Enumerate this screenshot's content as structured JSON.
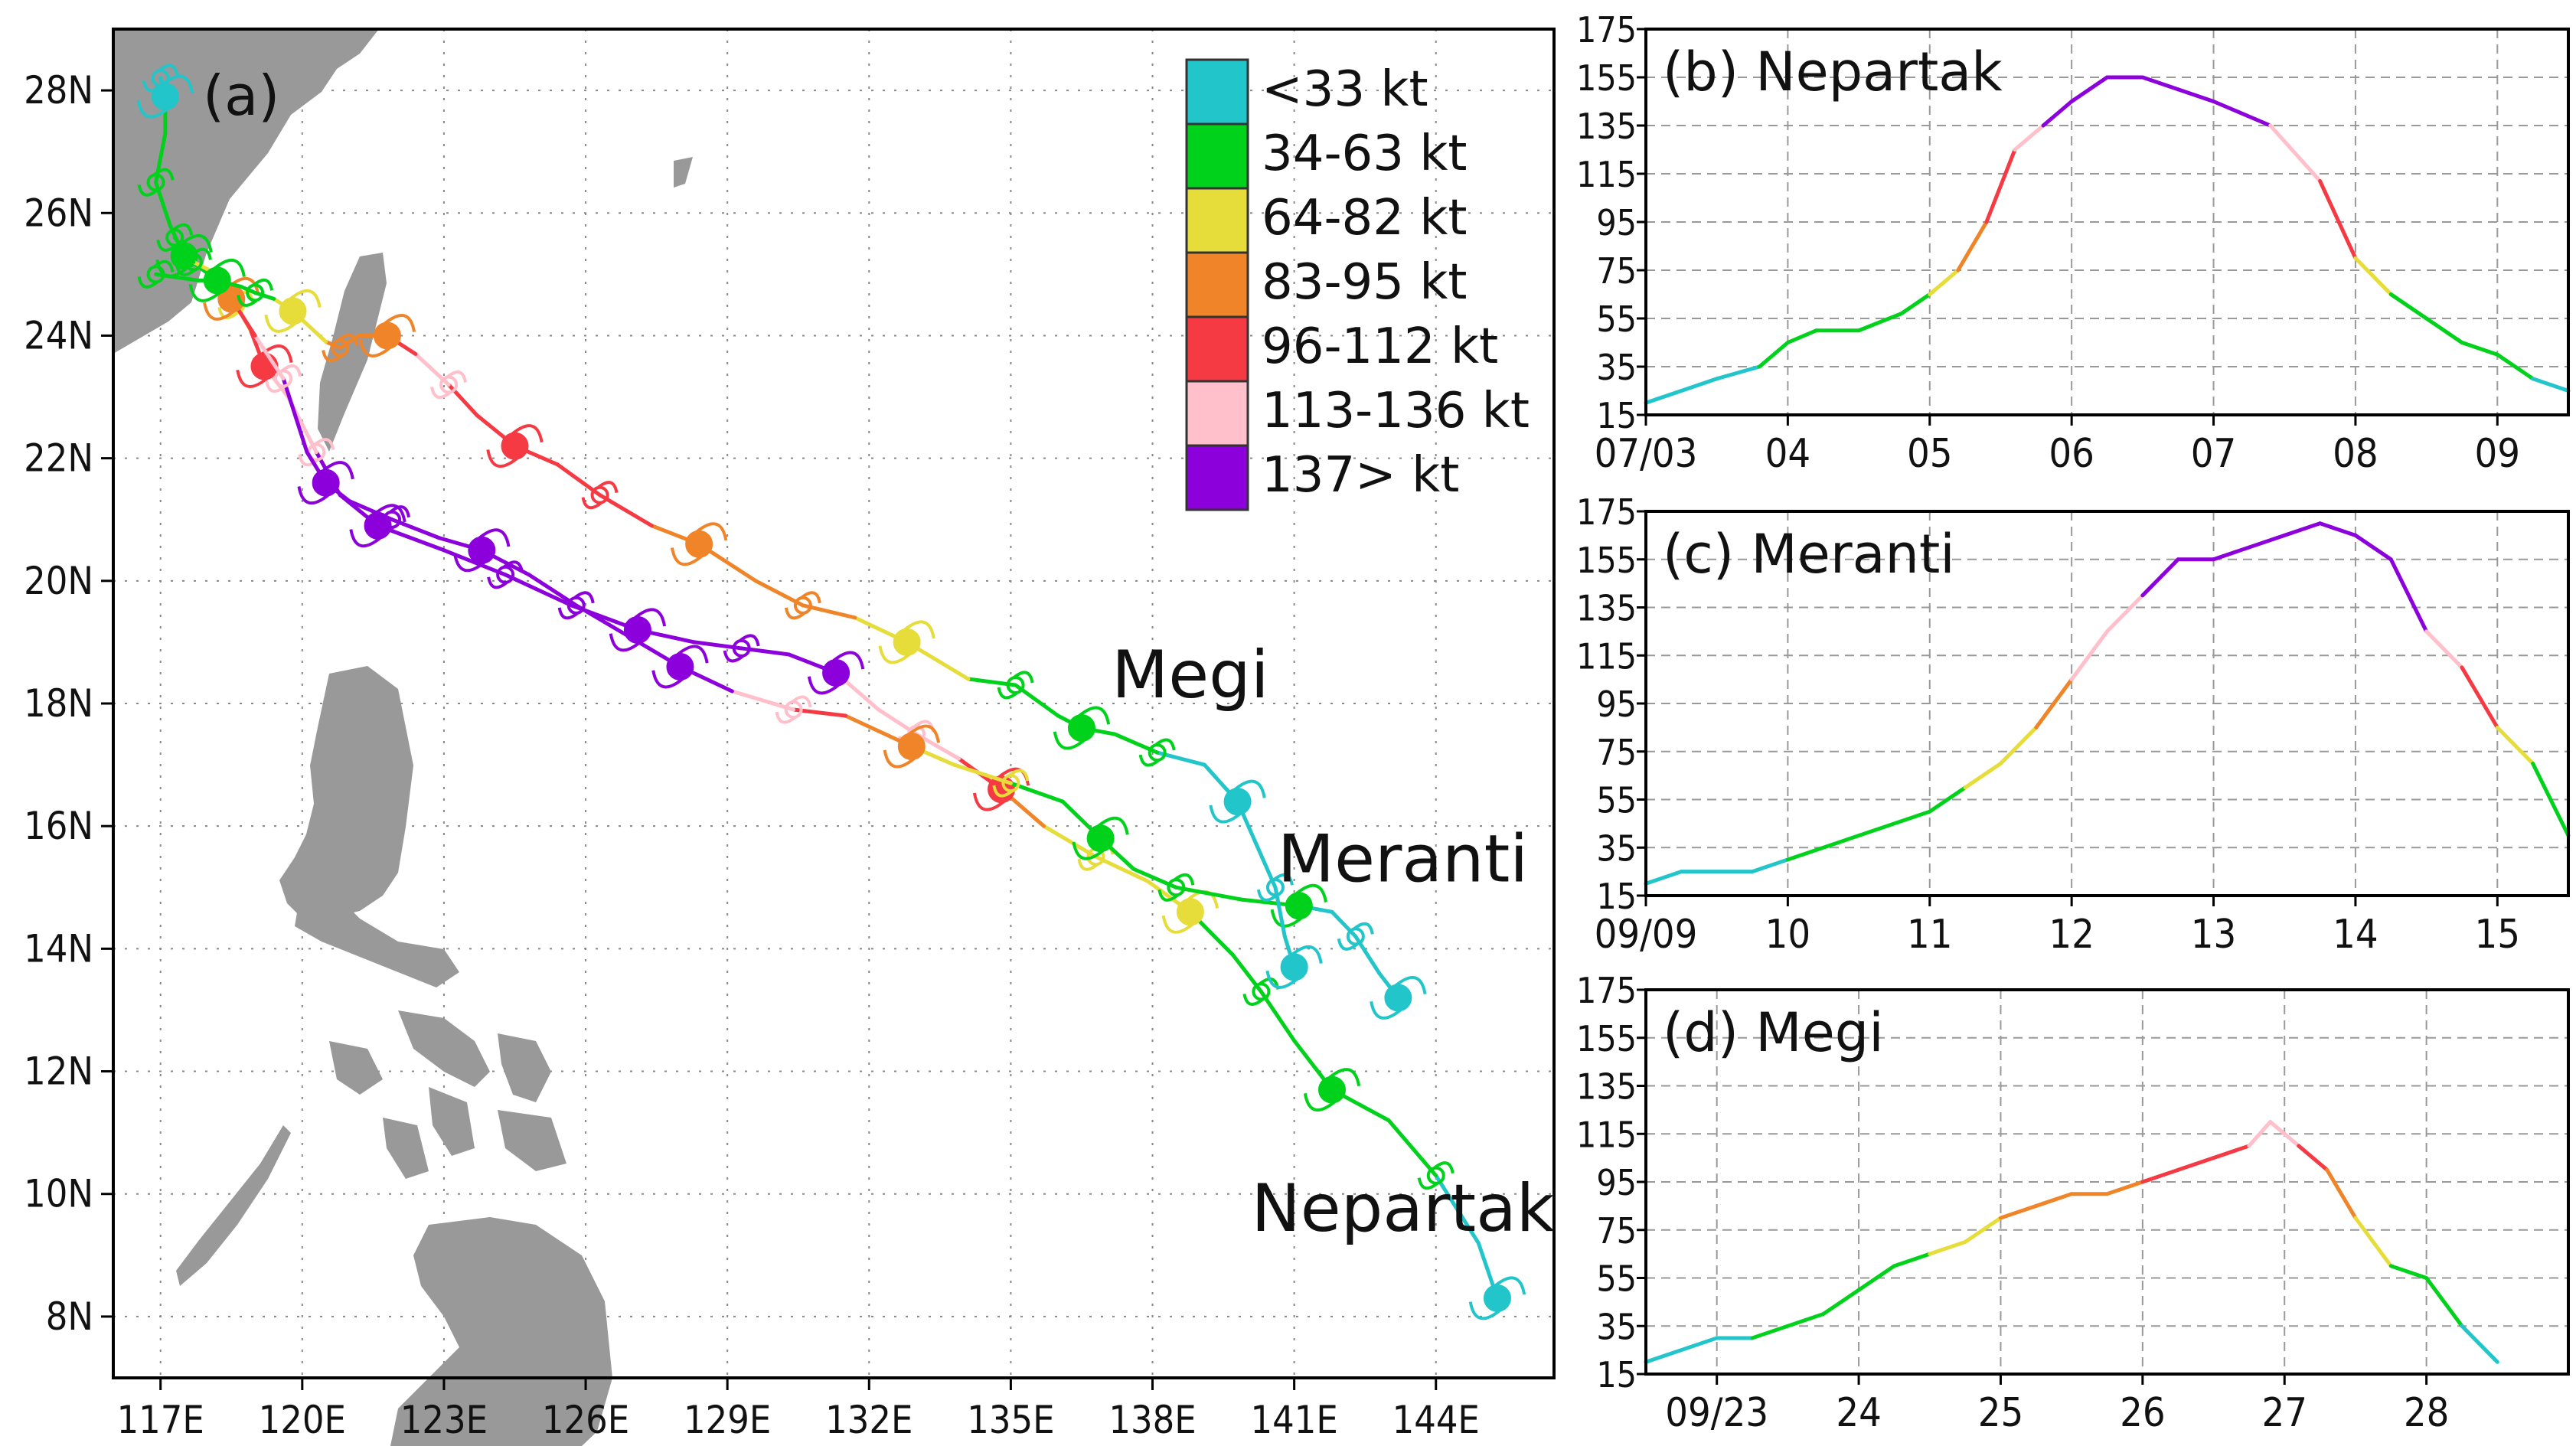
{
  "colors": {
    "<33 kt": "#22c5c9",
    "34-63 kt": "#00d21c",
    "64-82 kt": "#e6dc3a",
    "83-95 kt": "#f08428",
    "96-112 kt": "#f53a44",
    "113-136 kt": "#ffbfcb",
    "137> kt": "#8c00dc"
  },
  "chart_data": [
    {
      "type": "line",
      "panel": "(a)",
      "title": "(a)",
      "kind": "track-map",
      "xlim": [
        116,
        146.5
      ],
      "ylim": [
        7,
        29
      ],
      "x_ticks": [
        "117E",
        "120E",
        "123E",
        "126E",
        "129E",
        "132E",
        "135E",
        "138E",
        "141E",
        "144E"
      ],
      "y_ticks": [
        "8N",
        "10N",
        "12N",
        "14N",
        "16N",
        "18N",
        "20N",
        "22N",
        "24N",
        "26N",
        "28N"
      ],
      "legend": {
        "placement": "top-right",
        "entries": [
          "<33 kt",
          "34-63 kt",
          "64-82 kt",
          "83-95 kt",
          "96-112 kt",
          "113-136 kt",
          "137> kt"
        ]
      },
      "labels": [
        {
          "text": "Megi",
          "lon": 138.8,
          "lat": 18.1
        },
        {
          "text": "Meranti",
          "lon": 143.3,
          "lat": 15.1
        },
        {
          "text": "Nepartak",
          "lon": 143.3,
          "lat": 9.4
        }
      ],
      "series": [
        {
          "name": "Nepartak",
          "points": [
            [
              145.3,
              8.3,
              "<33 kt"
            ],
            [
              144.9,
              9.2,
              "<33 kt"
            ],
            [
              144.0,
              10.3,
              "34-63 kt"
            ],
            [
              143.0,
              11.2,
              "34-63 kt"
            ],
            [
              141.8,
              11.7,
              "34-63 kt"
            ],
            [
              141.0,
              12.5,
              "34-63 kt"
            ],
            [
              140.3,
              13.3,
              "34-63 kt"
            ],
            [
              139.7,
              13.9,
              "34-63 kt"
            ],
            [
              138.8,
              14.6,
              "64-82 kt"
            ],
            [
              137.9,
              15.1,
              "64-82 kt"
            ],
            [
              136.8,
              15.5,
              "64-82 kt"
            ],
            [
              135.7,
              16.0,
              "83-95 kt"
            ],
            [
              134.8,
              16.6,
              "96-112 kt"
            ],
            [
              133.9,
              17.1,
              "113-136 kt"
            ],
            [
              133.0,
              17.5,
              "113-136 kt"
            ],
            [
              132.2,
              17.9,
              "113-136 kt"
            ],
            [
              131.3,
              18.5,
              "137> kt"
            ],
            [
              130.3,
              18.8,
              "137> kt"
            ],
            [
              129.3,
              18.9,
              "137> kt"
            ],
            [
              128.3,
              19.0,
              "137> kt"
            ],
            [
              127.1,
              19.2,
              "137> kt"
            ],
            [
              125.7,
              19.6,
              "137> kt"
            ],
            [
              124.3,
              20.1,
              "137> kt"
            ],
            [
              123.0,
              20.5,
              "137> kt"
            ],
            [
              121.6,
              20.9,
              "137> kt"
            ],
            [
              120.8,
              21.4,
              "137> kt"
            ],
            [
              120.3,
              22.1,
              "113-136 kt"
            ],
            [
              119.7,
              23.0,
              "113-136 kt"
            ],
            [
              119.2,
              23.5,
              "96-112 kt"
            ],
            [
              118.9,
              24.1,
              "83-95 kt"
            ],
            [
              118.6,
              24.5,
              "64-82 kt"
            ],
            [
              118.2,
              24.9,
              "34-63 kt"
            ],
            [
              117.5,
              25.3,
              "34-63 kt"
            ],
            [
              117.2,
              25.8,
              "34-63 kt"
            ],
            [
              116.9,
              26.5,
              "34-63 kt"
            ],
            [
              117.1,
              27.3,
              "34-63 kt"
            ],
            [
              117.1,
              27.9,
              "<33 kt"
            ],
            [
              117.0,
              28.2,
              "<33 kt"
            ]
          ]
        },
        {
          "name": "Meranti",
          "points": [
            [
              143.2,
              13.2,
              "<33 kt"
            ],
            [
              142.8,
              13.6,
              "<33 kt"
            ],
            [
              142.3,
              14.2,
              "<33 kt"
            ],
            [
              141.8,
              14.6,
              "<33 kt"
            ],
            [
              141.1,
              14.7,
              "34-63 kt"
            ],
            [
              139.9,
              14.8,
              "34-63 kt"
            ],
            [
              138.5,
              15.0,
              "34-63 kt"
            ],
            [
              137.6,
              15.3,
              "34-63 kt"
            ],
            [
              136.9,
              15.8,
              "34-63 kt"
            ],
            [
              136.1,
              16.4,
              "34-63 kt"
            ],
            [
              135.0,
              16.7,
              "64-82 kt"
            ],
            [
              133.8,
              17.0,
              "64-82 kt"
            ],
            [
              132.9,
              17.3,
              "83-95 kt"
            ],
            [
              131.5,
              17.8,
              "96-112 kt"
            ],
            [
              130.4,
              17.9,
              "113-136 kt"
            ],
            [
              129.1,
              18.2,
              "137> kt"
            ],
            [
              128.0,
              18.6,
              "137> kt"
            ],
            [
              126.9,
              19.1,
              "137> kt"
            ],
            [
              125.8,
              19.6,
              "137> kt"
            ],
            [
              124.8,
              20.1,
              "137> kt"
            ],
            [
              123.8,
              20.5,
              "137> kt"
            ],
            [
              122.9,
              20.7,
              "137> kt"
            ],
            [
              121.9,
              21.0,
              "137> kt"
            ],
            [
              121.0,
              21.3,
              "137> kt"
            ],
            [
              120.5,
              21.6,
              "137> kt"
            ],
            [
              120.1,
              22.1,
              "137> kt"
            ],
            [
              119.6,
              23.3,
              "113-136 kt"
            ],
            [
              119.0,
              24.0,
              "96-112 kt"
            ],
            [
              118.5,
              24.6,
              "83-95 kt"
            ],
            [
              118.2,
              25.0,
              "64-82 kt"
            ],
            [
              117.7,
              25.2,
              "34-63 kt"
            ],
            [
              117.3,
              25.6,
              "34-63 kt"
            ]
          ]
        },
        {
          "name": "Megi",
          "points": [
            [
              141.0,
              13.7,
              "<33 kt"
            ],
            [
              140.8,
              14.2,
              "<33 kt"
            ],
            [
              140.6,
              15.0,
              "<33 kt"
            ],
            [
              140.2,
              15.7,
              "<33 kt"
            ],
            [
              139.8,
              16.4,
              "<33 kt"
            ],
            [
              139.1,
              17.0,
              "<33 kt"
            ],
            [
              138.1,
              17.2,
              "34-63 kt"
            ],
            [
              137.2,
              17.5,
              "34-63 kt"
            ],
            [
              136.5,
              17.6,
              "34-63 kt"
            ],
            [
              136.0,
              17.8,
              "34-63 kt"
            ],
            [
              135.1,
              18.3,
              "34-63 kt"
            ],
            [
              134.1,
              18.4,
              "64-82 kt"
            ],
            [
              132.8,
              19.0,
              "64-82 kt"
            ],
            [
              131.7,
              19.4,
              "83-95 kt"
            ],
            [
              130.6,
              19.6,
              "83-95 kt"
            ],
            [
              129.6,
              20.0,
              "83-95 kt"
            ],
            [
              128.4,
              20.6,
              "83-95 kt"
            ],
            [
              127.4,
              20.9,
              "96-112 kt"
            ],
            [
              126.3,
              21.4,
              "96-112 kt"
            ],
            [
              125.4,
              21.9,
              "96-112 kt"
            ],
            [
              124.5,
              22.2,
              "96-112 kt"
            ],
            [
              123.7,
              22.7,
              "96-112 kt"
            ],
            [
              123.1,
              23.2,
              "113-136 kt"
            ],
            [
              122.4,
              23.7,
              "96-112 kt"
            ],
            [
              121.8,
              24.0,
              "83-95 kt"
            ],
            [
              121.2,
              24.0,
              "83-95 kt"
            ],
            [
              120.8,
              23.8,
              "83-95 kt"
            ],
            [
              120.5,
              23.9,
              "64-82 kt"
            ],
            [
              119.8,
              24.4,
              "64-82 kt"
            ],
            [
              119.4,
              24.6,
              "34-63 kt"
            ],
            [
              119.0,
              24.7,
              "34-63 kt"
            ],
            [
              118.7,
              24.8,
              "34-63 kt"
            ],
            [
              118.2,
              24.9,
              "34-63 kt"
            ],
            [
              117.8,
              24.9,
              "34-63 kt"
            ],
            [
              116.9,
              25.0,
              "34-63 kt"
            ]
          ]
        }
      ]
    },
    {
      "type": "line",
      "panel": "(b)",
      "title": "(b) Nepartak",
      "ylim": [
        15,
        175
      ],
      "y_ticks": [
        15,
        35,
        55,
        75,
        95,
        115,
        135,
        155,
        175
      ],
      "xlim": [
        0,
        6.5
      ],
      "x_ticks": [
        {
          "label": "07/03",
          "x": 0
        },
        {
          "label": "04",
          "x": 1
        },
        {
          "label": "05",
          "x": 2
        },
        {
          "label": "06",
          "x": 3
        },
        {
          "label": "07",
          "x": 4
        },
        {
          "label": "08",
          "x": 5
        },
        {
          "label": "09",
          "x": 6
        }
      ],
      "x": [
        0,
        0.5,
        0.8,
        1.0,
        1.2,
        1.5,
        1.8,
        2.0,
        2.2,
        2.4,
        2.6,
        2.8,
        3.0,
        3.25,
        3.5,
        3.75,
        4.0,
        4.4,
        4.75,
        5.0,
        5.25,
        5.5,
        5.75,
        6.0,
        6.25,
        6.5
      ],
      "values": [
        20,
        30,
        35,
        45,
        50,
        50,
        57,
        65,
        75,
        95,
        125,
        135,
        145,
        155,
        155,
        150,
        145,
        135,
        112,
        80,
        65,
        55,
        45,
        40,
        30,
        25
      ]
    },
    {
      "type": "line",
      "panel": "(c)",
      "title": "(c) Meranti",
      "ylim": [
        15,
        175
      ],
      "y_ticks": [
        15,
        35,
        55,
        75,
        95,
        115,
        135,
        155,
        175
      ],
      "xlim": [
        0,
        6.5
      ],
      "x_ticks": [
        {
          "label": "09/09",
          "x": 0
        },
        {
          "label": "10",
          "x": 1
        },
        {
          "label": "11",
          "x": 2
        },
        {
          "label": "12",
          "x": 3
        },
        {
          "label": "13",
          "x": 4
        },
        {
          "label": "14",
          "x": 5
        },
        {
          "label": "15",
          "x": 6
        }
      ],
      "x": [
        0,
        0.25,
        0.75,
        1.0,
        1.5,
        2.0,
        2.25,
        2.5,
        2.75,
        3.0,
        3.25,
        3.5,
        3.75,
        4.0,
        4.25,
        4.5,
        4.75,
        5.0,
        5.25,
        5.5,
        5.75,
        6.0,
        6.25,
        6.5
      ],
      "values": [
        20,
        25,
        25,
        30,
        40,
        50,
        60,
        70,
        85,
        105,
        125,
        140,
        155,
        155,
        160,
        165,
        170,
        165,
        155,
        125,
        110,
        85,
        70,
        40
      ]
    },
    {
      "type": "line",
      "panel": "(d)",
      "title": "(d) Megi",
      "ylim": [
        15,
        175
      ],
      "y_ticks": [
        15,
        35,
        55,
        75,
        95,
        115,
        135,
        155,
        175
      ],
      "xlim": [
        0,
        6.5
      ],
      "x_ticks": [
        {
          "label": "09/23",
          "x": 0.5
        },
        {
          "label": "24",
          "x": 1.5
        },
        {
          "label": "25",
          "x": 2.5
        },
        {
          "label": "26",
          "x": 3.5
        },
        {
          "label": "27",
          "x": 4.5
        },
        {
          "label": "28",
          "x": 5.5
        }
      ],
      "x": [
        0,
        0.5,
        0.75,
        1.25,
        1.5,
        1.75,
        2.0,
        2.25,
        2.5,
        2.75,
        3.0,
        3.25,
        3.5,
        3.75,
        4.0,
        4.25,
        4.4,
        4.6,
        4.8,
        5.0,
        5.25,
        5.5,
        5.75,
        6.0
      ],
      "values": [
        20,
        30,
        30,
        40,
        50,
        60,
        65,
        70,
        80,
        85,
        90,
        90,
        95,
        100,
        105,
        110,
        120,
        110,
        100,
        80,
        60,
        55,
        35,
        20
      ]
    }
  ]
}
